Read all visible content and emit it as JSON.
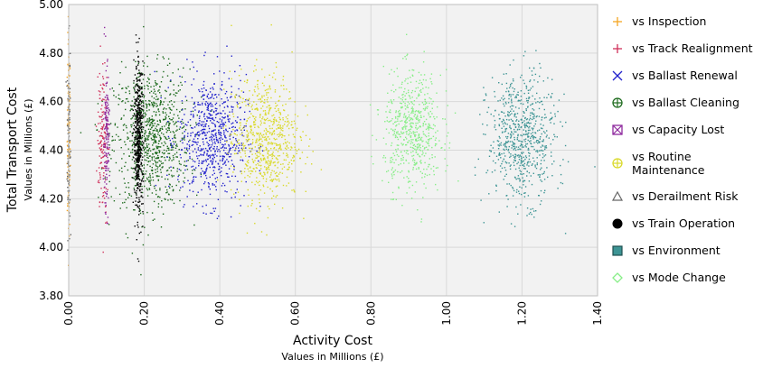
{
  "chart_data": {
    "type": "scatter",
    "title": "",
    "xlabel": "Activity Cost",
    "xlabel_sub": "Values in Millions (£)",
    "ylabel": "Total Transport Cost",
    "ylabel_sub": "Values in Millions (£)",
    "xlim": [
      0.0,
      1.4
    ],
    "ylim": [
      3.8,
      5.0
    ],
    "x_ticks": [
      "0.00",
      "0.20",
      "0.40",
      "0.60",
      "0.80",
      "1.00",
      "1.20",
      "1.40"
    ],
    "y_ticks": [
      "3.80",
      "4.00",
      "4.20",
      "4.40",
      "4.60",
      "4.80",
      "5.00"
    ],
    "grid": true,
    "legend_position": "right",
    "series": [
      {
        "name": "vs Inspection",
        "color": "#f5a623",
        "marker": "plus",
        "cluster": {
          "x_mean": 0.0,
          "x_sd": 0.002,
          "y_mean": 4.45,
          "y_sd": 0.2
        }
      },
      {
        "name": "vs Track Realignment",
        "color": "#d0305a",
        "marker": "plus",
        "cluster": {
          "x_mean": 0.09,
          "x_sd": 0.007,
          "y_mean": 4.45,
          "y_sd": 0.16
        }
      },
      {
        "name": "vs Ballast Renewal",
        "color": "#2222cc",
        "marker": "x",
        "cluster": {
          "x_mean": 0.38,
          "x_sd": 0.045,
          "y_mean": 4.45,
          "y_sd": 0.13
        }
      },
      {
        "name": "vs Ballast Cleaning",
        "color": "#1e6b1e",
        "marker": "circle-plus",
        "cluster": {
          "x_mean": 0.22,
          "x_sd": 0.05,
          "y_mean": 4.45,
          "y_sd": 0.14
        }
      },
      {
        "name": "vs Capacity Lost",
        "color": "#8e2a9e",
        "marker": "box-x",
        "cluster": {
          "x_mean": 0.1,
          "x_sd": 0.004,
          "y_mean": 4.45,
          "y_sd": 0.15
        }
      },
      {
        "name": "vs Routine Maintenance",
        "color": "#d9d92a",
        "marker": "circle-plus",
        "cluster": {
          "x_mean": 0.52,
          "x_sd": 0.045,
          "y_mean": 4.45,
          "y_sd": 0.13
        }
      },
      {
        "name": "vs Derailment Risk",
        "color": "#666666",
        "marker": "triangle",
        "cluster": {
          "x_mean": 0.0,
          "x_sd": 0.002,
          "y_mean": 4.45,
          "y_sd": 0.2
        }
      },
      {
        "name": "vs Train Operation",
        "color": "#000000",
        "marker": "circle",
        "cluster": {
          "x_mean": 0.185,
          "x_sd": 0.006,
          "y_mean": 4.45,
          "y_sd": 0.15
        }
      },
      {
        "name": "vs Environment",
        "color": "#3d9494",
        "marker": "box",
        "cluster": {
          "x_mean": 1.2,
          "x_sd": 0.045,
          "y_mean": 4.45,
          "y_sd": 0.13
        }
      },
      {
        "name": "vs Mode Change",
        "color": "#88ee88",
        "marker": "diamond",
        "cluster": {
          "x_mean": 0.91,
          "x_sd": 0.038,
          "y_mean": 4.48,
          "y_sd": 0.12
        }
      }
    ]
  }
}
